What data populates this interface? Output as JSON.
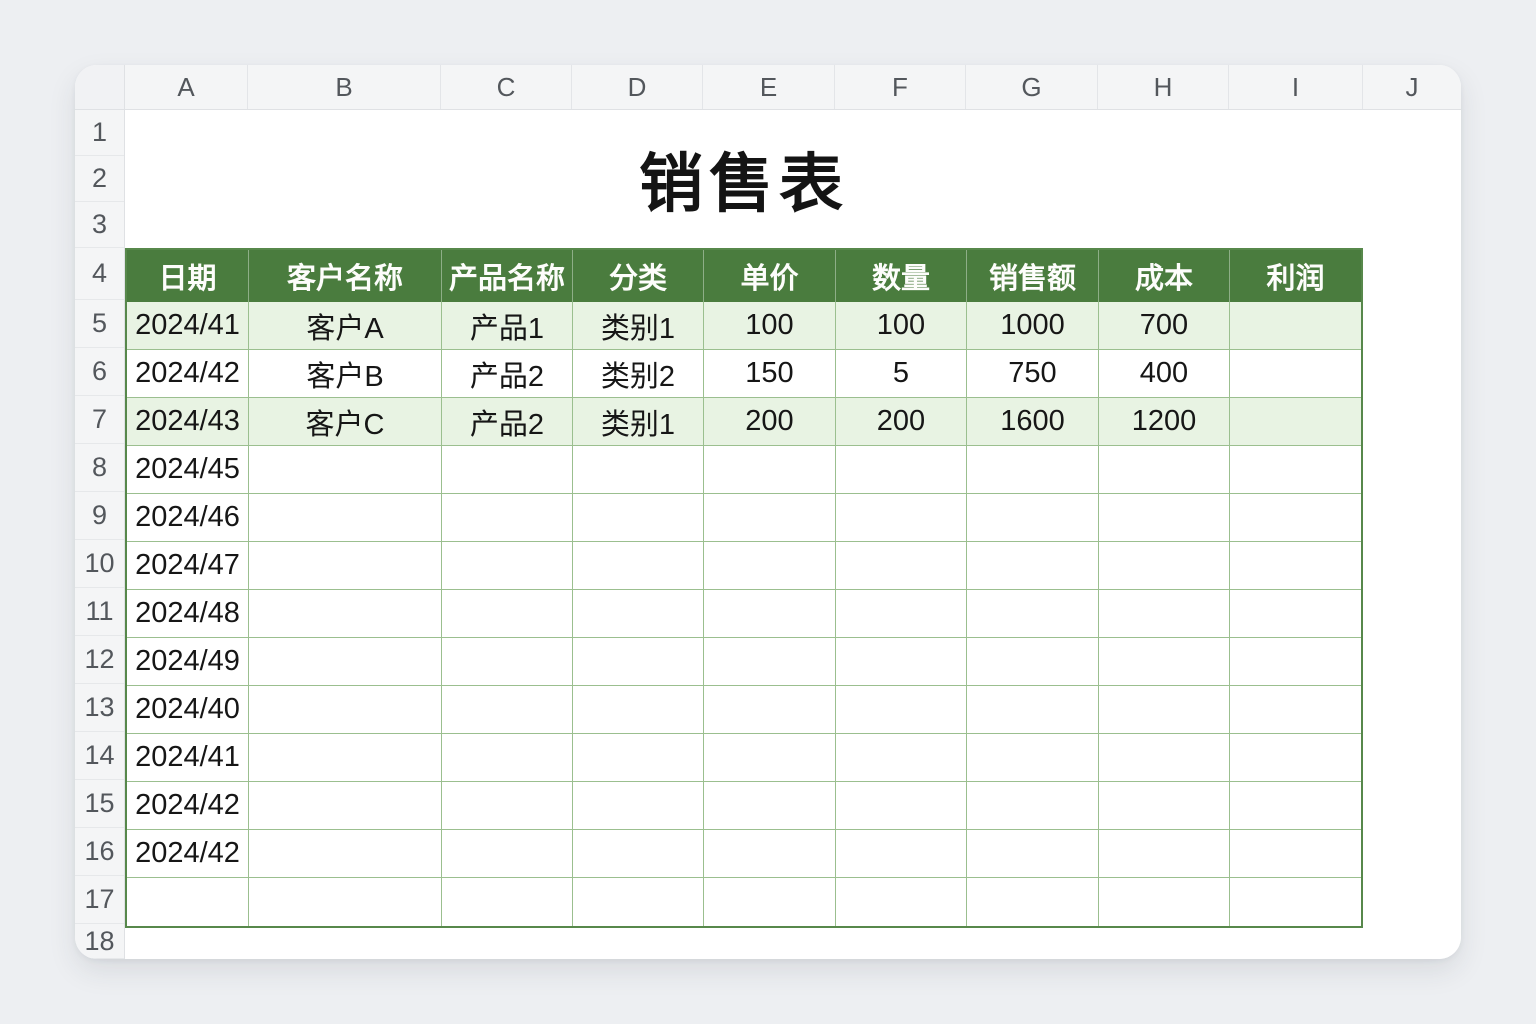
{
  "app": {
    "kind": "spreadsheet",
    "colors": {
      "page_background": "#edeff2",
      "window_background": "#ffffff",
      "strip_background": "#f4f5f6",
      "table_header_green": "#4a7c3e",
      "row_tint_green": "#e8f3e3",
      "grid_line_green": "#9bbf8f",
      "table_border_green": "#57884b",
      "text_dark": "#161616"
    }
  },
  "sheet": {
    "title": "销售表",
    "column_letters": [
      "A",
      "B",
      "C",
      "D",
      "E",
      "F",
      "G",
      "H",
      "I",
      "J"
    ],
    "row_numbers": [
      "1",
      "2",
      "3",
      "4",
      "5",
      "6",
      "7",
      "8",
      "9",
      "10",
      "11",
      "12",
      "13",
      "14",
      "15",
      "16",
      "17",
      "18"
    ],
    "table": {
      "header": [
        "日期",
        "客户名称",
        "产品名称",
        "分类",
        "单价",
        "数量",
        "销售额",
        "成本",
        "利润"
      ],
      "rows": [
        {
          "tint": true,
          "cells": [
            "2024/41",
            "客户A",
            "产品1",
            "类别1",
            "100",
            "100",
            "1000",
            "700",
            ""
          ]
        },
        {
          "tint": false,
          "cells": [
            "2024/42",
            "客户B",
            "产品2",
            "类别2",
            "150",
            "5",
            "750",
            "400",
            ""
          ]
        },
        {
          "tint": true,
          "cells": [
            "2024/43",
            "客户C",
            "产品2",
            "类别1",
            "200",
            "200",
            "1600",
            "1200",
            ""
          ]
        },
        {
          "tint": false,
          "cells": [
            "2024/45",
            "",
            "",
            "",
            "",
            "",
            "",
            "",
            ""
          ]
        },
        {
          "tint": false,
          "cells": [
            "2024/46",
            "",
            "",
            "",
            "",
            "",
            "",
            "",
            ""
          ]
        },
        {
          "tint": false,
          "cells": [
            "2024/47",
            "",
            "",
            "",
            "",
            "",
            "",
            "",
            ""
          ]
        },
        {
          "tint": false,
          "cells": [
            "2024/48",
            "",
            "",
            "",
            "",
            "",
            "",
            "",
            ""
          ]
        },
        {
          "tint": false,
          "cells": [
            "2024/49",
            "",
            "",
            "",
            "",
            "",
            "",
            "",
            ""
          ]
        },
        {
          "tint": false,
          "cells": [
            "2024/40",
            "",
            "",
            "",
            "",
            "",
            "",
            "",
            ""
          ]
        },
        {
          "tint": false,
          "cells": [
            "2024/41",
            "",
            "",
            "",
            "",
            "",
            "",
            "",
            ""
          ]
        },
        {
          "tint": false,
          "cells": [
            "2024/42",
            "",
            "",
            "",
            "",
            "",
            "",
            "",
            ""
          ]
        },
        {
          "tint": false,
          "cells": [
            "2024/42",
            "",
            "",
            "",
            "",
            "",
            "",
            "",
            ""
          ]
        },
        {
          "tint": false,
          "cells": [
            "",
            "",
            "",
            "",
            "",
            "",
            "",
            "",
            ""
          ]
        }
      ]
    }
  }
}
